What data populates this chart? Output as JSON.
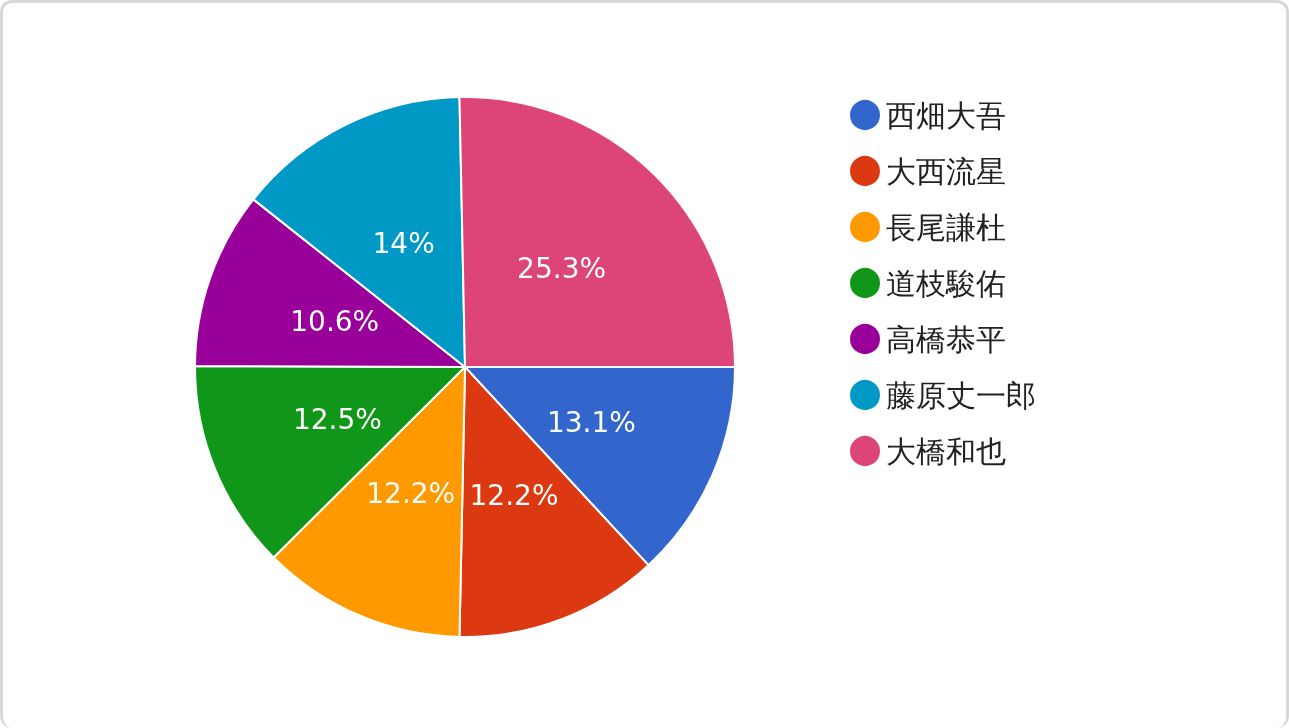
{
  "chart_data": {
    "type": "pie",
    "categories": [
      "西畑大吾",
      "大西流星",
      "長尾謙杜",
      "道枝駿佑",
      "高橋恭平",
      "藤原丈一郎",
      "大橋和也"
    ],
    "values": [
      13.1,
      12.2,
      12.2,
      12.5,
      10.6,
      14,
      25.3
    ],
    "value_labels": [
      "13.1%",
      "12.2%",
      "12.2%",
      "12.5%",
      "10.6%",
      "14%",
      "25.3%"
    ],
    "colors": [
      "#3366cc",
      "#dc3912",
      "#ff9900",
      "#109618",
      "#990099",
      "#0099c6",
      "#dd4477"
    ],
    "legend": "right"
  }
}
